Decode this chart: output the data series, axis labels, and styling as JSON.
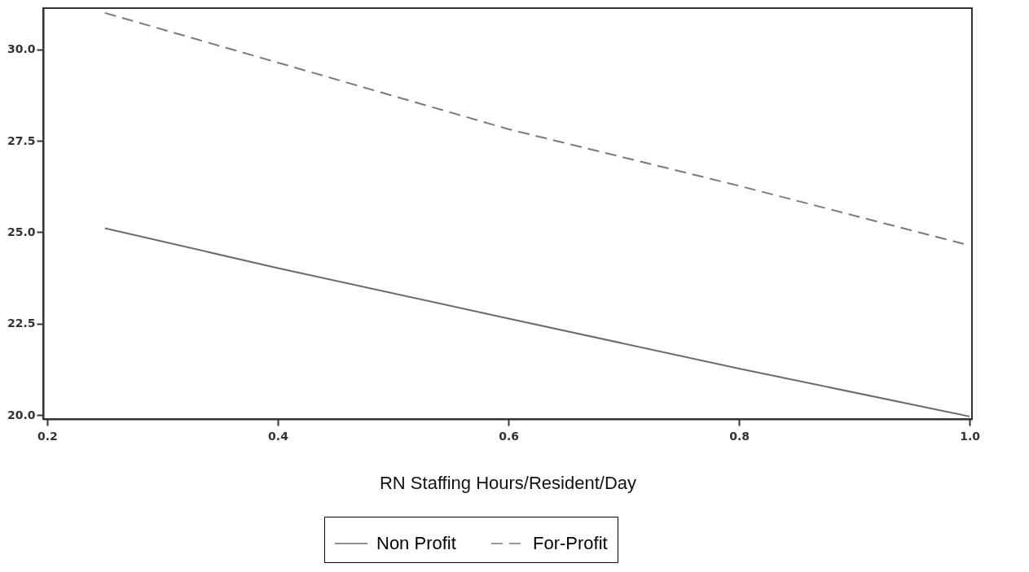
{
  "chart_data": {
    "type": "line",
    "xlabel": "RN Staffing Hours/Resident/Day",
    "xlim": [
      0.1965,
      1.002
    ],
    "ylim": [
      19.89,
      31.13
    ],
    "xticks": [
      0.2,
      0.4,
      0.6,
      0.8,
      {
        "value": 1.0,
        "label": "1.0"
      }
    ],
    "yticks": [
      {
        "value": 20,
        "label": "20.0"
      },
      22.5,
      {
        "value": 25,
        "label": "25.0"
      },
      27.5,
      {
        "value": 30,
        "label": "30.0"
      }
    ],
    "x": [
      0.25,
      0.4,
      0.6,
      0.8,
      1.0
    ],
    "series": [
      {
        "name": "Non Profit",
        "color": "#6b6b6b",
        "line_style": "solid",
        "values": [
          25.11,
          24.02,
          22.64,
          21.27,
          19.96
        ]
      },
      {
        "name": "For-Profit",
        "color": "#7a7a7a",
        "line_style": "dashed",
        "values": [
          31.0,
          29.64,
          27.82,
          26.27,
          24.64
        ]
      }
    ],
    "grid": false,
    "legend": "bottom",
    "marker": "none"
  }
}
